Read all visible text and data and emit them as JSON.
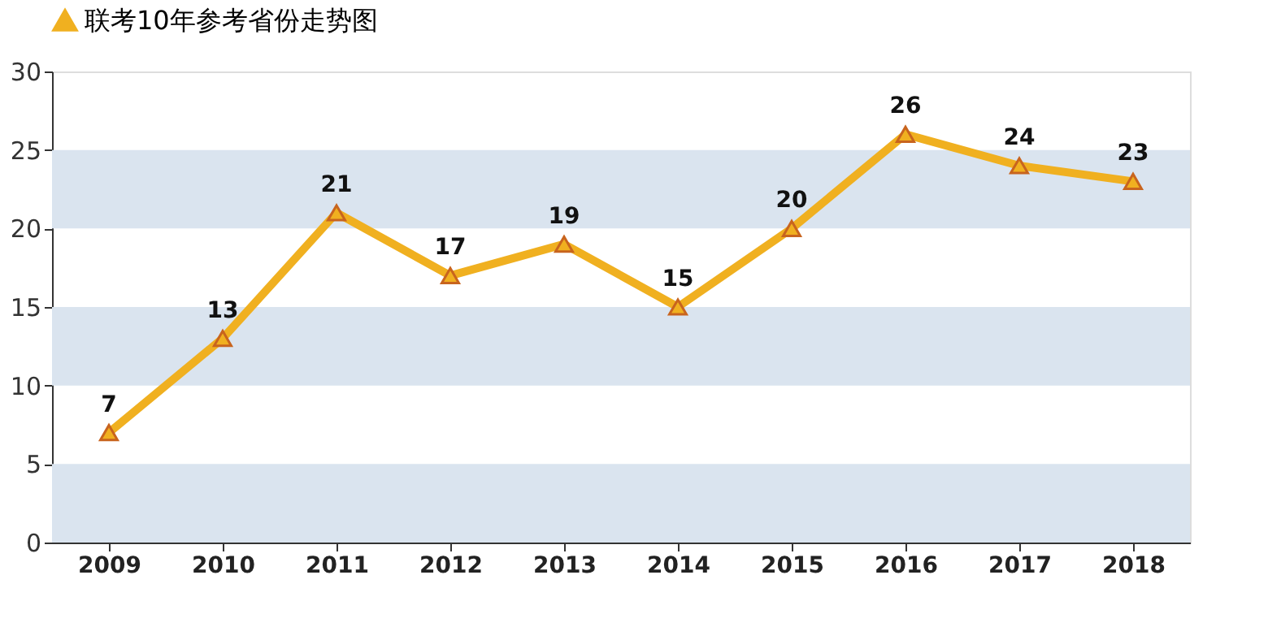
{
  "chart_data": {
    "type": "line",
    "categories": [
      "2009",
      "2010",
      "2011",
      "2012",
      "2013",
      "2014",
      "2015",
      "2016",
      "2017",
      "2018"
    ],
    "series": [
      {
        "name": "联考10年参考省份走势图",
        "color": "#f0b020",
        "values": [
          7,
          13,
          21,
          17,
          19,
          15,
          20,
          26,
          24,
          23
        ]
      }
    ],
    "ylim": [
      0,
      30
    ],
    "yticks": [
      0,
      5,
      10,
      15,
      20,
      25,
      30
    ],
    "data_labels": true,
    "marker": "triangle",
    "line_style": "solid",
    "legend": "top",
    "grid": false,
    "bands": [
      {
        "axis": "y",
        "from": 0,
        "to": 5,
        "color": "#dae4ef"
      },
      {
        "axis": "y",
        "from": 10,
        "to": 15,
        "color": "#dae4ef"
      },
      {
        "axis": "y",
        "from": 20,
        "to": 25,
        "color": "#dae4ef"
      }
    ]
  }
}
